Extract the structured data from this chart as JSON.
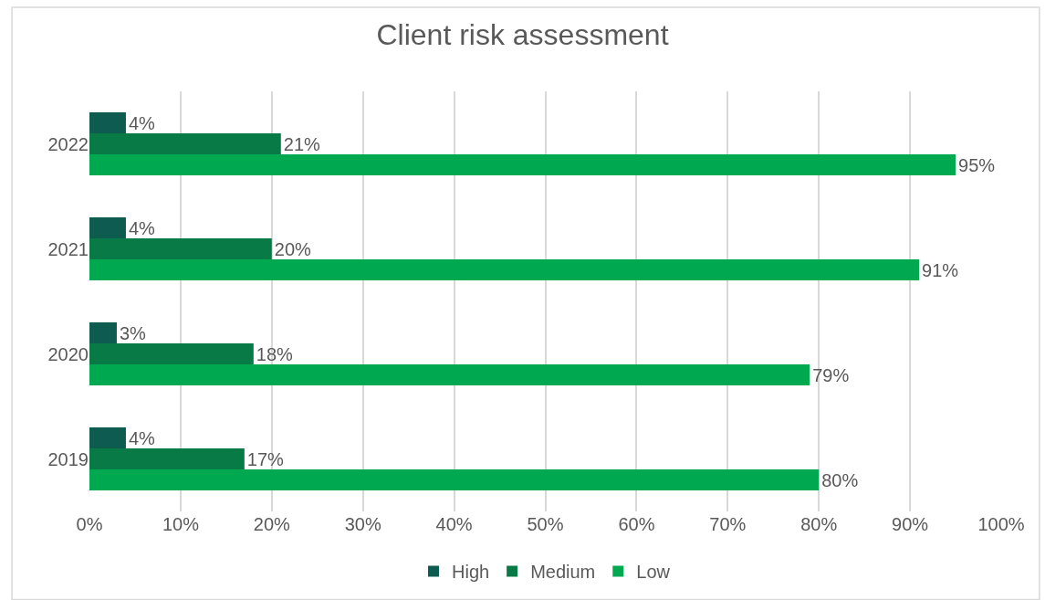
{
  "chart_data": {
    "type": "bar",
    "orientation": "horizontal",
    "title": "Client risk assessment",
    "categories": [
      "2022",
      "2021",
      "2020",
      "2019"
    ],
    "series": [
      {
        "name": "High",
        "color": "#0e5c4f",
        "values": [
          4,
          4,
          3,
          4
        ],
        "value_labels": [
          "4%",
          "4%",
          "3%",
          "4%"
        ]
      },
      {
        "name": "Medium",
        "color": "#077a45",
        "values": [
          21,
          20,
          18,
          17
        ],
        "value_labels": [
          "21%",
          "20%",
          "18%",
          "17%"
        ]
      },
      {
        "name": "Low",
        "color": "#00a94f",
        "values": [
          95,
          91,
          79,
          80
        ],
        "value_labels": [
          "95%",
          "91%",
          "79%",
          "80%"
        ]
      }
    ],
    "xlim": [
      0,
      100
    ],
    "xticks": [
      {
        "value": 0,
        "label": "0%"
      },
      {
        "value": 10,
        "label": "10%"
      },
      {
        "value": 20,
        "label": "20%"
      },
      {
        "value": 30,
        "label": "30%"
      },
      {
        "value": 40,
        "label": "40%"
      },
      {
        "value": 50,
        "label": "50%"
      },
      {
        "value": 60,
        "label": "60%"
      },
      {
        "value": 70,
        "label": "70%"
      },
      {
        "value": 80,
        "label": "80%"
      },
      {
        "value": 90,
        "label": "90%"
      },
      {
        "value": 100,
        "label": "100%"
      }
    ],
    "grid": "x",
    "legend": "bottom"
  }
}
